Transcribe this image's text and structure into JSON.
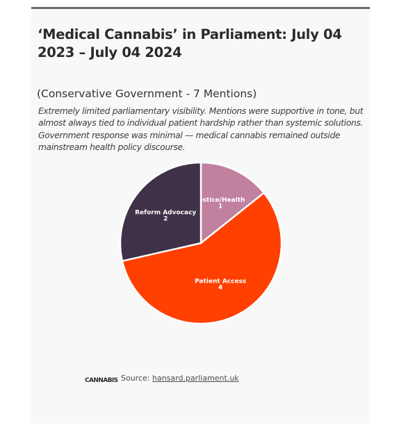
{
  "title": "‘Medical Cannabis’ in Parliament: July 04 2023 – July 04 2024",
  "subtitle": "(Conservative Government - 7 Mentions)",
  "description": "Extremely limited parliamentary visibility. Mentions were supportive in tone, but almost always tied to individual patient hardship rather than systemic solutions. Government response was minimal — medical cannabis remained outside mainstream health policy discourse.",
  "footer": {
    "logo_text": "CANNABIS",
    "source_prefix": "Source:",
    "source_link": "hansard.parliament.uk"
  },
  "chart_data": {
    "type": "pie",
    "title": "‘Medical Cannabis’ in Parliament: July 04 2023 – July 04 2024",
    "subtitle": "(Conservative Government - 7 Mentions)",
    "total": 7,
    "slices": [
      {
        "label": "Justice/Health",
        "value": 1,
        "color": "#c0809e"
      },
      {
        "label": "Patient Access",
        "value": 4,
        "color": "#ff4000"
      },
      {
        "label": "Reform Advocacy",
        "value": 2,
        "color": "#3f3147"
      }
    ]
  }
}
